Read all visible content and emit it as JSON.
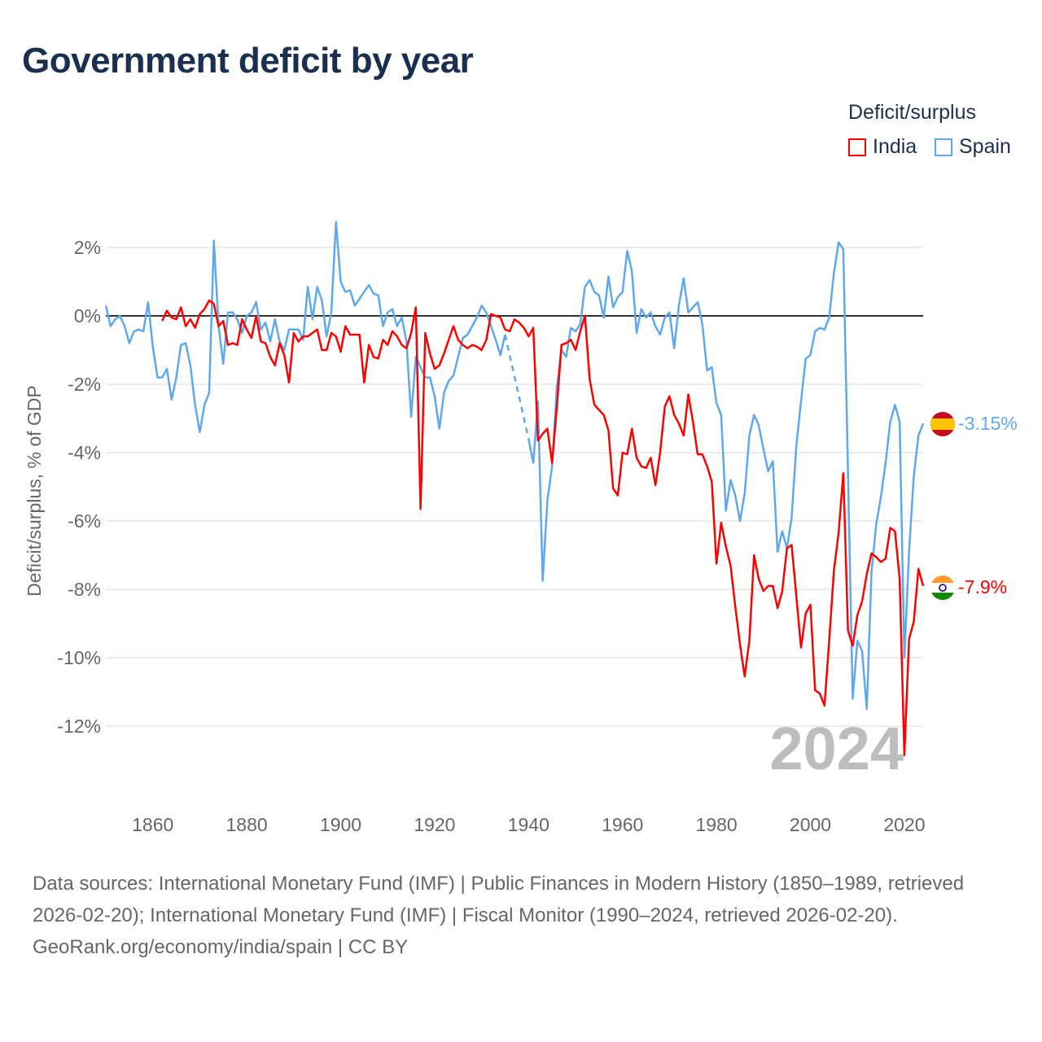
{
  "title": "Government deficit by year",
  "legend": {
    "title": "Deficit/surplus",
    "items": [
      {
        "name": "India",
        "color": "#ff0000"
      },
      {
        "name": "Spain",
        "color": "#5fa8ec"
      }
    ]
  },
  "watermark_year": "2024",
  "end_labels": {
    "spain": "-3.15%",
    "india": "-7.9%"
  },
  "source": {
    "text": "Data sources: International Monetary Fund (IMF) | Public Finances in Modern History (1850–1989, retrieved 2026-02-20); International Monetary Fund (IMF) | Fiscal Monitor (1990–2024, retrieved 2026-02-20).",
    "link": "GeoRank.org/economy/india/spain | CC BY"
  },
  "chart_data": {
    "type": "line",
    "title": "Government deficit by year",
    "xlabel": "",
    "ylabel": "Deficit/surplus, % of GDP",
    "xlim": [
      1850,
      2024
    ],
    "ylim": [
      -14,
      3
    ],
    "xticks": [
      1860,
      1880,
      1900,
      1920,
      1940,
      1960,
      1980,
      2000,
      2020
    ],
    "yticks": [
      2,
      0,
      -2,
      -4,
      -6,
      -8,
      -10,
      -12
    ],
    "ytick_labels": [
      "2%",
      "0%",
      "-2%",
      "-4%",
      "-6%",
      "-8%",
      "-10%",
      "-12%"
    ],
    "grid": true,
    "legend_position": "top-right",
    "series": [
      {
        "name": "Spain",
        "color": "#5fa8ec",
        "start_year": 1850,
        "values": [
          0.3,
          -0.3,
          -0.1,
          0.0,
          -0.3,
          -0.8,
          -0.45,
          -0.4,
          -0.45,
          0.4,
          -0.9,
          -1.8,
          -1.8,
          -1.55,
          -2.45,
          -1.8,
          -0.85,
          -0.8,
          -1.45,
          -2.6,
          -3.4,
          -2.6,
          -2.25,
          2.2,
          -0.3,
          -1.4,
          0.1,
          0.1,
          -0.1,
          -0.5,
          0.0,
          0.1,
          0.4,
          -0.4,
          -0.2,
          -0.75,
          -0.1,
          -0.75,
          -1.0,
          -0.4,
          -0.4,
          -0.4,
          -0.7,
          0.85,
          -0.1,
          0.85,
          0.45,
          -0.6,
          0.1,
          2.75,
          1.0,
          0.7,
          0.75,
          0.3,
          0.5,
          0.7,
          0.9,
          0.65,
          0.6,
          -0.3,
          0.1,
          0.2,
          -0.3,
          -0.05,
          -0.75,
          -2.95,
          -1.2,
          -1.5,
          -1.8,
          -1.8,
          -2.35,
          -3.3,
          -2.25,
          -1.9,
          -1.75,
          -1.2,
          -0.65,
          -0.55,
          -0.3,
          -0.05,
          0.3,
          0.1,
          -0.3,
          -0.7,
          -1.15,
          -0.55,
          null,
          null,
          null,
          null,
          -3.6,
          -4.3,
          -2.5,
          -7.75,
          -5.4,
          -4.4,
          -2.1,
          -1.0,
          -1.2,
          -0.35,
          -0.45,
          -0.25,
          0.85,
          1.05,
          0.7,
          0.6,
          -0.05,
          1.15,
          0.25,
          0.55,
          0.7,
          1.9,
          1.3,
          -0.5,
          0.2,
          -0.05,
          0.1,
          -0.3,
          -0.55,
          -0.05,
          0.1,
          -0.95,
          0.3,
          1.1,
          0.1,
          0.25,
          0.4,
          -0.25,
          -1.6,
          -1.5,
          -2.55,
          -2.9,
          -5.7,
          -4.8,
          -5.25,
          -6.0,
          -5.2,
          -3.5,
          -2.9,
          -3.2,
          -3.9,
          -4.55,
          -4.25,
          -6.9,
          -6.3,
          -6.8,
          -5.9,
          -3.8,
          -2.5,
          -1.25,
          -1.15,
          -0.45,
          -0.35,
          -0.4,
          -0.05,
          1.25,
          2.15,
          1.95,
          -4.6,
          -11.2,
          -9.5,
          -9.8,
          -11.5,
          -7.5,
          -6.1,
          -5.3,
          -4.3,
          -3.1,
          -2.6,
          -3.1,
          -10.0,
          -6.9,
          -4.7,
          -3.5,
          -3.15
        ]
      },
      {
        "name": "India",
        "color": "#ff0000",
        "start_year": 1862,
        "values": [
          -0.15,
          0.15,
          -0.05,
          -0.1,
          0.25,
          -0.3,
          -0.1,
          -0.35,
          0.05,
          0.2,
          0.45,
          0.35,
          -0.3,
          -0.15,
          -0.85,
          -0.8,
          -0.85,
          -0.1,
          -0.4,
          -0.65,
          0.0,
          -0.75,
          -0.8,
          -1.2,
          -1.45,
          -0.8,
          -1.15,
          -1.95,
          -0.5,
          -0.75,
          -0.6,
          -0.6,
          -0.5,
          -0.4,
          -1.0,
          -1.0,
          -0.5,
          -0.6,
          -1.05,
          -0.3,
          -0.55,
          -0.55,
          -0.55,
          -1.95,
          -0.85,
          -1.2,
          -1.25,
          -0.7,
          -0.85,
          -0.45,
          -0.6,
          -0.85,
          -0.95,
          -0.5,
          0.25,
          -5.65,
          -0.5,
          -1.1,
          -1.55,
          -1.45,
          -1.1,
          -0.7,
          -0.3,
          -0.7,
          -0.85,
          -0.95,
          -0.85,
          -0.9,
          -1.0,
          -0.7,
          0.05,
          0.0,
          -0.05,
          -0.4,
          -0.45,
          -0.1,
          -0.2,
          -0.35,
          -0.6,
          -0.35,
          -3.65,
          -3.45,
          -3.3,
          -4.3,
          -2.7,
          -0.85,
          -0.8,
          -0.7,
          -1.0,
          -0.45,
          0.0,
          -1.85,
          -2.6,
          -2.75,
          -2.9,
          -3.35,
          -5.05,
          -5.25,
          -4.0,
          -4.05,
          -3.3,
          -4.15,
          -4.4,
          -4.45,
          -4.15,
          -4.95,
          -4.0,
          -2.65,
          -2.35,
          -2.9,
          -3.15,
          -3.5,
          -2.3,
          -3.1,
          -4.05,
          -4.05,
          -4.4,
          -4.85,
          -7.25,
          -6.05,
          -6.75,
          -7.3,
          -8.5,
          -9.6,
          -10.55,
          -9.5,
          -7.0,
          -7.7,
          -8.05,
          -7.9,
          -7.9,
          -8.55,
          -8.05,
          -6.8,
          -6.7,
          -8.2,
          -9.7,
          -8.7,
          -8.45,
          -10.95,
          -11.05,
          -11.4,
          -9.5,
          -7.45,
          -6.35,
          -4.6,
          -9.2,
          -9.65,
          -8.75,
          -8.35,
          -7.55,
          -6.95,
          -7.05,
          -7.2,
          -7.1,
          -6.2,
          -6.3,
          -7.7,
          -12.85,
          -9.45,
          -8.95,
          -7.4,
          -7.9
        ]
      }
    ]
  }
}
